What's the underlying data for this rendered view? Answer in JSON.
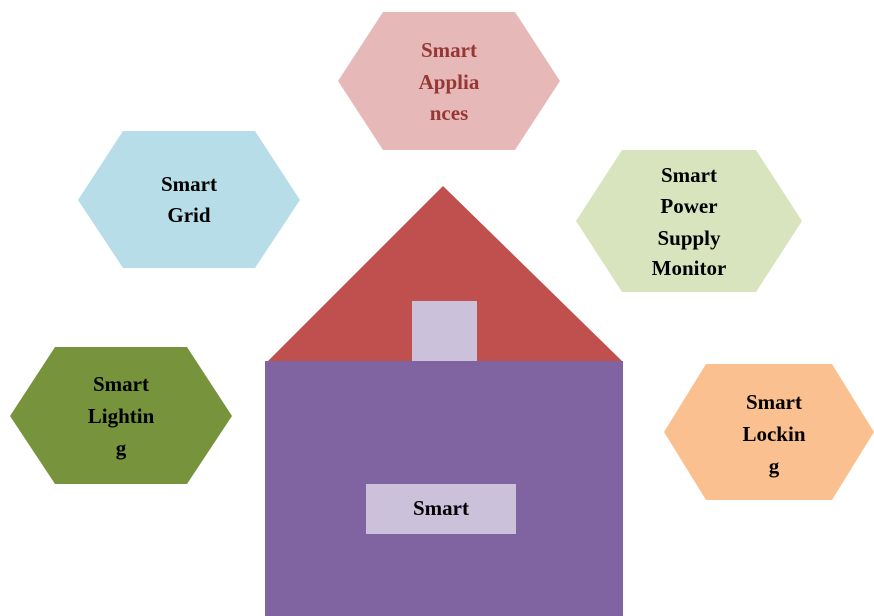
{
  "nodes": [
    {
      "label": [
        "Smart",
        "Applia",
        "nces"
      ]
    },
    {
      "label": [
        "Smart",
        "Grid"
      ]
    },
    {
      "label": [
        "Smart",
        "Power",
        "Supply",
        "Monitor"
      ]
    },
    {
      "label": [
        "Smart",
        "Lightin",
        "g"
      ]
    },
    {
      "label": [
        "Smart",
        "Lockin",
        "g"
      ]
    }
  ],
  "house": {
    "label": "Smart"
  }
}
